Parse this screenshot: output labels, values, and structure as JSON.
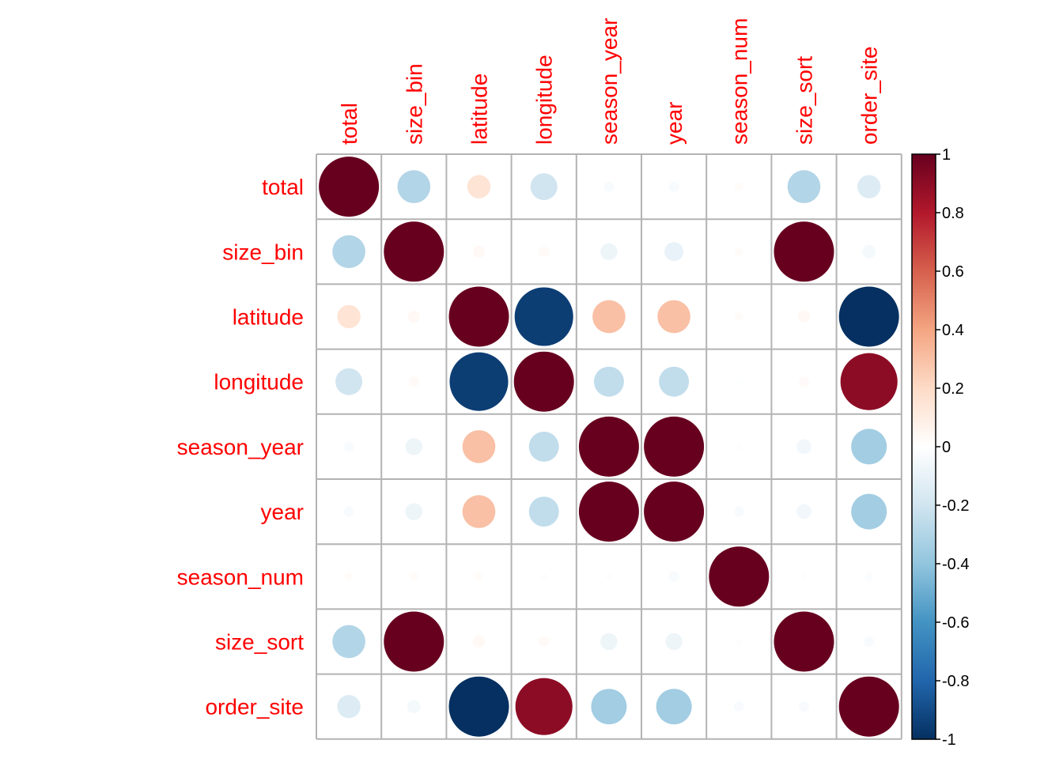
{
  "chart_data": {
    "type": "heatmap",
    "style": "corrplot-circle",
    "variables": [
      "total",
      "size_bin",
      "latitude",
      "longitude",
      "season_year",
      "year",
      "season_num",
      "size_sort",
      "order_site"
    ],
    "matrix": [
      [
        1.0,
        -0.3,
        0.15,
        -0.2,
        -0.03,
        -0.03,
        0.02,
        -0.3,
        -0.15
      ],
      [
        -0.3,
        1.0,
        0.04,
        0.03,
        -0.08,
        -0.1,
        0.02,
        1.0,
        -0.05
      ],
      [
        0.15,
        0.04,
        1.0,
        -0.95,
        0.3,
        0.3,
        0.02,
        0.04,
        -1.0
      ],
      [
        -0.2,
        0.03,
        -0.95,
        1.0,
        -0.25,
        -0.25,
        -0.01,
        0.03,
        0.9
      ],
      [
        -0.03,
        -0.08,
        0.3,
        -0.25,
        1.0,
        1.0,
        0.01,
        -0.06,
        -0.35
      ],
      [
        -0.03,
        -0.08,
        0.3,
        -0.25,
        1.0,
        1.0,
        -0.03,
        -0.06,
        -0.35
      ],
      [
        0.02,
        0.02,
        0.02,
        0.01,
        0.01,
        -0.03,
        1.0,
        0.01,
        -0.02
      ],
      [
        -0.3,
        1.0,
        0.04,
        0.03,
        -0.08,
        -0.08,
        0.01,
        1.0,
        -0.03
      ],
      [
        -0.15,
        -0.05,
        -1.0,
        0.9,
        -0.35,
        -0.35,
        -0.03,
        -0.03,
        1.0
      ]
    ],
    "colorbar": {
      "range": [
        -1,
        1
      ],
      "ticks": [
        "1",
        "0.8",
        "0.6",
        "0.4",
        "0.2",
        "0",
        "-0.2",
        "-0.4",
        "-0.6",
        "-0.8",
        "-1"
      ],
      "colors": [
        "#67001F",
        "#B2182B",
        "#D6604D",
        "#F4A582",
        "#FDDBC7",
        "#FFFFFF",
        "#D1E5F0",
        "#92C5DE",
        "#4393C3",
        "#2166AC",
        "#053061"
      ]
    },
    "label_color": "#ff0000",
    "grid_color": "#b3b3b3"
  }
}
